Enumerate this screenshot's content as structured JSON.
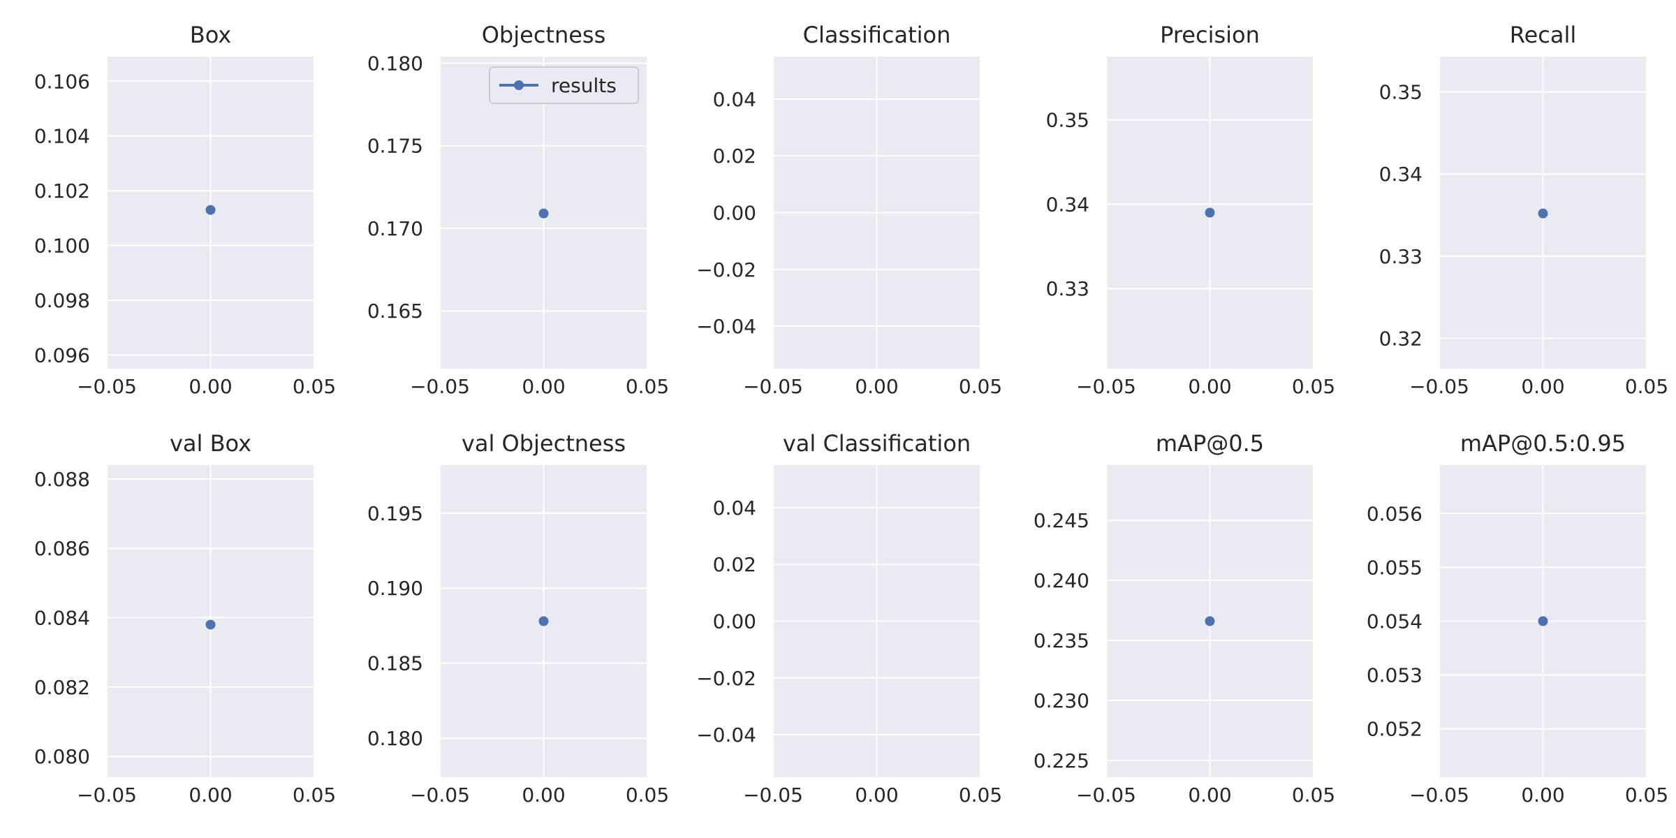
{
  "colors": {
    "background": "#ffffff",
    "panel": "#eaeaf2",
    "grid": "#ffffff",
    "series": "#4c72b0",
    "text": "#262626"
  },
  "legend": {
    "label": "results",
    "location": "top-right",
    "panel": 1
  },
  "chart_data": [
    {
      "type": "line",
      "title": "Box",
      "x": [
        0.0
      ],
      "series": [
        {
          "values": [
            0.1013
          ]
        }
      ],
      "xlim": [
        -0.05,
        0.05
      ],
      "ylim": [
        0.0955,
        0.1069
      ],
      "xticks": [
        "−0.05",
        "0.00",
        "0.05"
      ],
      "xtick_values": [
        -0.05,
        0.0,
        0.05
      ],
      "yticks": [
        "0.096",
        "0.098",
        "0.100",
        "0.102",
        "0.104",
        "0.106"
      ],
      "ytick_values": [
        0.096,
        0.098,
        0.1,
        0.102,
        0.104,
        0.106
      ],
      "grid": true
    },
    {
      "type": "line",
      "title": "Objectness",
      "x": [
        0.0
      ],
      "series": [
        {
          "name": "results",
          "values": [
            0.1709
          ]
        }
      ],
      "xlim": [
        -0.05,
        0.05
      ],
      "ylim": [
        0.1615,
        0.1804
      ],
      "xticks": [
        "−0.05",
        "0.00",
        "0.05"
      ],
      "xtick_values": [
        -0.05,
        0.0,
        0.05
      ],
      "yticks": [
        "0.165",
        "0.170",
        "0.175",
        "0.180"
      ],
      "ytick_values": [
        0.165,
        0.17,
        0.175,
        0.18
      ],
      "grid": true
    },
    {
      "type": "line",
      "title": "Classification",
      "x": [],
      "series": [
        {
          "values": []
        }
      ],
      "xlim": [
        -0.05,
        0.05
      ],
      "ylim": [
        -0.055,
        0.055
      ],
      "xticks": [
        "−0.05",
        "0.00",
        "0.05"
      ],
      "xtick_values": [
        -0.05,
        0.0,
        0.05
      ],
      "yticks": [
        "−0.04",
        "−0.02",
        "0.00",
        "0.02",
        "0.04"
      ],
      "ytick_values": [
        -0.04,
        -0.02,
        0.0,
        0.02,
        0.04
      ],
      "grid": true
    },
    {
      "type": "line",
      "title": "Precision",
      "x": [
        0.0
      ],
      "series": [
        {
          "values": [
            0.339
          ]
        }
      ],
      "xlim": [
        -0.05,
        0.05
      ],
      "ylim": [
        0.3205,
        0.3575
      ],
      "xticks": [
        "−0.05",
        "0.00",
        "0.05"
      ],
      "xtick_values": [
        -0.05,
        0.0,
        0.05
      ],
      "yticks": [
        "0.33",
        "0.34",
        "0.35"
      ],
      "ytick_values": [
        0.33,
        0.34,
        0.35
      ],
      "grid": true
    },
    {
      "type": "line",
      "title": "Recall",
      "x": [
        0.0
      ],
      "series": [
        {
          "values": [
            0.3352
          ]
        }
      ],
      "xlim": [
        -0.05,
        0.05
      ],
      "ylim": [
        0.3163,
        0.3543
      ],
      "xticks": [
        "−0.05",
        "0.00",
        "0.05"
      ],
      "xtick_values": [
        -0.05,
        0.0,
        0.05
      ],
      "yticks": [
        "0.32",
        "0.33",
        "0.34",
        "0.35"
      ],
      "ytick_values": [
        0.32,
        0.33,
        0.34,
        0.35
      ],
      "grid": true
    },
    {
      "type": "line",
      "title": "val Box",
      "x": [
        0.0
      ],
      "series": [
        {
          "values": [
            0.0838
          ]
        }
      ],
      "xlim": [
        -0.05,
        0.05
      ],
      "ylim": [
        0.0794,
        0.0884
      ],
      "xticks": [
        "−0.05",
        "0.00",
        "0.05"
      ],
      "xtick_values": [
        -0.05,
        0.0,
        0.05
      ],
      "yticks": [
        "0.080",
        "0.082",
        "0.084",
        "0.086",
        "0.088"
      ],
      "ytick_values": [
        0.08,
        0.082,
        0.084,
        0.086,
        0.088
      ],
      "grid": true
    },
    {
      "type": "line",
      "title": "val Objectness",
      "x": [
        0.0
      ],
      "series": [
        {
          "values": [
            0.1878
          ]
        }
      ],
      "xlim": [
        -0.05,
        0.05
      ],
      "ylim": [
        0.1774,
        0.1982
      ],
      "xticks": [
        "−0.05",
        "0.00",
        "0.05"
      ],
      "xtick_values": [
        -0.05,
        0.0,
        0.05
      ],
      "yticks": [
        "0.180",
        "0.185",
        "0.190",
        "0.195"
      ],
      "ytick_values": [
        0.18,
        0.185,
        0.19,
        0.195
      ],
      "grid": true
    },
    {
      "type": "line",
      "title": "val Classification",
      "x": [],
      "series": [
        {
          "values": []
        }
      ],
      "xlim": [
        -0.05,
        0.05
      ],
      "ylim": [
        -0.055,
        0.055
      ],
      "xticks": [
        "−0.05",
        "0.00",
        "0.05"
      ],
      "xtick_values": [
        -0.05,
        0.0,
        0.05
      ],
      "yticks": [
        "−0.04",
        "−0.02",
        "0.00",
        "0.02",
        "0.04"
      ],
      "ytick_values": [
        -0.04,
        -0.02,
        0.0,
        0.02,
        0.04
      ],
      "grid": true
    },
    {
      "type": "line",
      "title": "mAP@0.5",
      "x": [
        0.0
      ],
      "series": [
        {
          "values": [
            0.2366
          ]
        }
      ],
      "xlim": [
        -0.05,
        0.05
      ],
      "ylim": [
        0.2236,
        0.2496
      ],
      "xticks": [
        "−0.05",
        "0.00",
        "0.05"
      ],
      "xtick_values": [
        -0.05,
        0.0,
        0.05
      ],
      "yticks": [
        "0.225",
        "0.230",
        "0.235",
        "0.240",
        "0.245"
      ],
      "ytick_values": [
        0.225,
        0.23,
        0.235,
        0.24,
        0.245
      ],
      "grid": true
    },
    {
      "type": "line",
      "title": "mAP@0.5:0.95",
      "x": [
        0.0
      ],
      "series": [
        {
          "values": [
            0.054
          ]
        }
      ],
      "xlim": [
        -0.05,
        0.05
      ],
      "ylim": [
        0.0511,
        0.0569
      ],
      "xticks": [
        "−0.05",
        "0.00",
        "0.05"
      ],
      "xtick_values": [
        -0.05,
        0.0,
        0.05
      ],
      "yticks": [
        "0.052",
        "0.053",
        "0.054",
        "0.055",
        "0.056"
      ],
      "ytick_values": [
        0.052,
        0.053,
        0.054,
        0.055,
        0.056
      ],
      "grid": true
    }
  ]
}
